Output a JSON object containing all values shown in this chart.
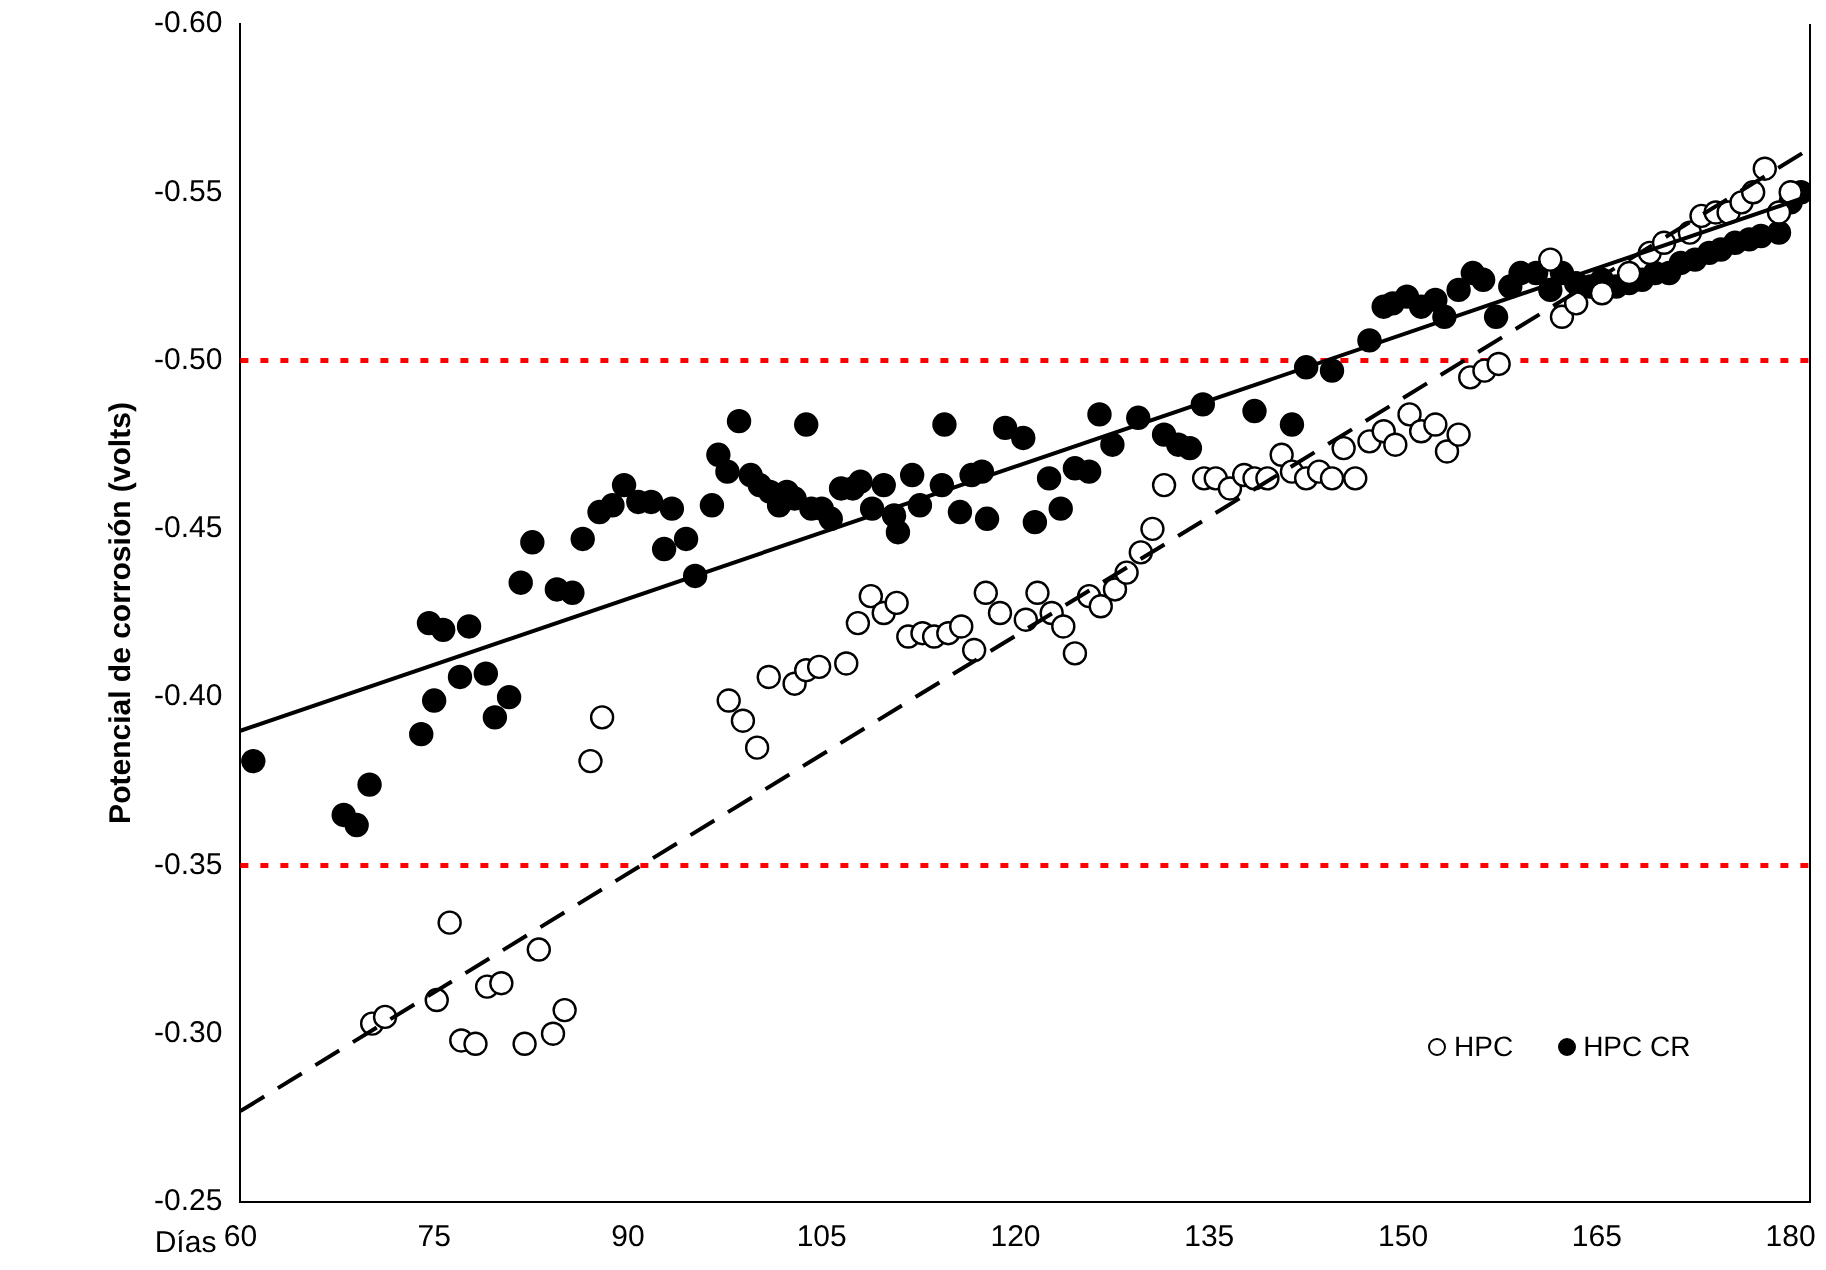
{
  "chart_data": {
    "type": "scatter",
    "xlabel": "Días",
    "ylabel": "Potencial de corrosión (volts)",
    "xlim": [
      60,
      181.5
    ],
    "xticks": [
      60,
      75,
      90,
      105,
      120,
      135,
      150,
      165,
      180
    ],
    "ylim": [
      -0.25,
      -0.6
    ],
    "yticks": [
      {
        "value": -0.25,
        "label": "-0.25"
      },
      {
        "value": -0.3,
        "label": "-0.30"
      },
      {
        "value": -0.35,
        "label": "-0.35"
      },
      {
        "value": -0.4,
        "label": "-0.40"
      },
      {
        "value": -0.45,
        "label": "-0.45"
      },
      {
        "value": -0.5,
        "label": "-0.50"
      },
      {
        "value": -0.55,
        "label": "-0.55"
      },
      {
        "value": -0.6,
        "label": "-0.60"
      }
    ],
    "grid": false,
    "legend": "bottom right",
    "marker": "circle",
    "ref_lines": [
      {
        "axis": "y",
        "value": -0.5,
        "color": "#ff0000",
        "line_style": "dotted"
      },
      {
        "axis": "y",
        "value": -0.35,
        "color": "#ff0000",
        "line_style": "dotted"
      }
    ],
    "series": [
      {
        "name": "HPC",
        "color": "#ffffff",
        "x": [
          70.2,
          71.2,
          75.2,
          76.2,
          77.1,
          78.2,
          79.1,
          80.2,
          82,
          83.1,
          84.2,
          85.1,
          87.1,
          88,
          97.8,
          98.9,
          100,
          100.9,
          102.9,
          103.8,
          104.8,
          106.9,
          107.8,
          108.8,
          109.8,
          110.8,
          111.7,
          112.8,
          113.7,
          114.8,
          115.8,
          116.8,
          117.7,
          118.8,
          120.8,
          121.7,
          122.8,
          123.7,
          124.6,
          125.7,
          126.6,
          127.7,
          128.6,
          129.7,
          130.6,
          131.5,
          134.6,
          135.5,
          136.6,
          137.7,
          138.5,
          139.5,
          140.6,
          141.4,
          142.5,
          143.5,
          144.5,
          145.4,
          146.3,
          147.4,
          148.5,
          149.4,
          150.5,
          151.4,
          152.5,
          153.4,
          154.3,
          155.2,
          156.3,
          157.4,
          161.4,
          162.3,
          163.4,
          165.4,
          167.5,
          169.1,
          170.2,
          172.2,
          173.1,
          174.2,
          175.2,
          176.2,
          177.1,
          178,
          179.1,
          180
        ],
        "values": [
          -0.303,
          -0.305,
          -0.31,
          -0.333,
          -0.298,
          -0.297,
          -0.314,
          -0.315,
          -0.297,
          -0.325,
          -0.3,
          -0.307,
          -0.381,
          -0.394,
          -0.399,
          -0.393,
          -0.385,
          -0.406,
          -0.404,
          -0.408,
          -0.409,
          -0.41,
          -0.422,
          -0.43,
          -0.425,
          -0.428,
          -0.418,
          -0.419,
          -0.418,
          -0.419,
          -0.421,
          -0.414,
          -0.431,
          -0.425,
          -0.423,
          -0.431,
          -0.425,
          -0.421,
          -0.413,
          -0.43,
          -0.427,
          -0.432,
          -0.437,
          -0.443,
          -0.45,
          -0.463,
          -0.465,
          -0.465,
          -0.462,
          -0.466,
          -0.465,
          -0.465,
          -0.472,
          -0.467,
          -0.465,
          -0.467,
          -0.465,
          -0.474,
          -0.465,
          -0.476,
          -0.479,
          -0.475,
          -0.484,
          -0.479,
          -0.481,
          -0.473,
          -0.478,
          -0.495,
          -0.497,
          -0.499,
          -0.53,
          -0.513,
          -0.517,
          -0.52,
          -0.526,
          -0.532,
          -0.535,
          -0.538,
          -0.543,
          -0.544,
          -0.544,
          -0.547,
          -0.55,
          -0.557,
          -0.544,
          -0.55
        ]
      },
      {
        "name": "HPC CR",
        "color": "#000000",
        "x": [
          61,
          68,
          69,
          70,
          74,
          75,
          74.6,
          75.7,
          77,
          77.7,
          79,
          79.7,
          80.8,
          81.7,
          82.6,
          84.5,
          85.7,
          86.5,
          87.8,
          88.8,
          89.7,
          90.8,
          91.8,
          92.8,
          93.4,
          94.5,
          95.2,
          96.5,
          97,
          97.7,
          98.6,
          99.5,
          100.2,
          101,
          101.7,
          102.3,
          102.9,
          103.8,
          104.2,
          105,
          105.7,
          106.5,
          107.4,
          108,
          108.9,
          109.8,
          110.6,
          110.9,
          112,
          112.6,
          114.5,
          114.3,
          115.7,
          116.6,
          117.4,
          117.8,
          119.2,
          120.6,
          121.5,
          122.6,
          123.5,
          124.6,
          125.7,
          126.5,
          127.5,
          129.5,
          131.5,
          132.6,
          133.5,
          134.5,
          138.5,
          141.4,
          142.5,
          144.5,
          147.4,
          148.5,
          149.2,
          150.3,
          151.4,
          152.5,
          153.2,
          154.3,
          155.4,
          156.2,
          157.2,
          158.3,
          159.1,
          160.3,
          161.4,
          162.3,
          163.4,
          164.5,
          165.4,
          166.5,
          167.5,
          168.5,
          169.5,
          170.6,
          171.5,
          172.6,
          173.7,
          174.6,
          175.7,
          176.8,
          177.7,
          179.1,
          180,
          180.8
        ],
        "values": [
          -0.381,
          -0.365,
          -0.362,
          -0.374,
          -0.389,
          -0.399,
          -0.422,
          -0.42,
          -0.406,
          -0.421,
          -0.407,
          -0.394,
          -0.4,
          -0.434,
          -0.446,
          -0.432,
          -0.431,
          -0.447,
          -0.455,
          -0.457,
          -0.463,
          -0.458,
          -0.458,
          -0.444,
          -0.456,
          -0.447,
          -0.436,
          -0.457,
          -0.472,
          -0.467,
          -0.482,
          -0.466,
          -0.463,
          -0.461,
          -0.457,
          -0.461,
          -0.459,
          -0.481,
          -0.456,
          -0.456,
          -0.453,
          -0.462,
          -0.462,
          -0.464,
          -0.456,
          -0.463,
          -0.454,
          -0.449,
          -0.466,
          -0.457,
          -0.481,
          -0.463,
          -0.455,
          -0.466,
          -0.467,
          -0.453,
          -0.48,
          -0.477,
          -0.452,
          -0.465,
          -0.456,
          -0.468,
          -0.467,
          -0.484,
          -0.475,
          -0.483,
          -0.478,
          -0.475,
          -0.474,
          -0.487,
          -0.485,
          -0.481,
          -0.498,
          -0.497,
          -0.506,
          -0.516,
          -0.517,
          -0.519,
          -0.516,
          -0.518,
          -0.513,
          -0.521,
          -0.526,
          -0.524,
          -0.513,
          -0.522,
          -0.526,
          -0.526,
          -0.521,
          -0.526,
          -0.523,
          -0.522,
          -0.524,
          -0.522,
          -0.523,
          -0.524,
          -0.526,
          -0.526,
          -0.529,
          -0.53,
          -0.532,
          -0.533,
          -0.535,
          -0.536,
          -0.537,
          -0.538,
          -0.547,
          -0.55
        ]
      },
      {
        "type": "line",
        "color": "#000000",
        "line_style": "dashed",
        "marker": "none",
        "x": [
          60,
          181.5
        ],
        "values": [
          -0.277,
          -0.563
        ]
      },
      {
        "type": "line",
        "color": "#000000",
        "line_style": "solid",
        "marker": "none",
        "x": [
          60,
          181.5
        ],
        "values": [
          -0.39,
          -0.549
        ]
      }
    ]
  }
}
